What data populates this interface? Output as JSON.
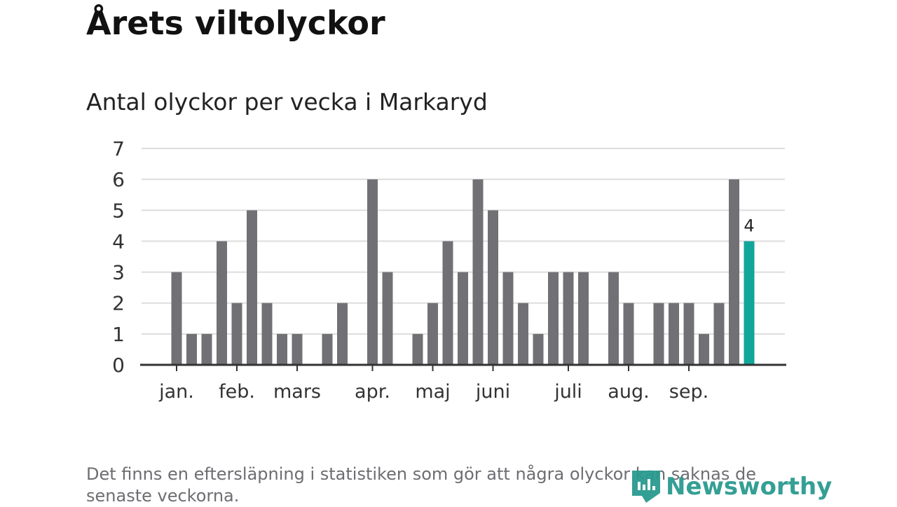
{
  "title": "Årets viltolyckor",
  "chart_data": {
    "type": "bar",
    "title": "Antal olyckor per vecka i Markaryd",
    "xlabel": "",
    "ylabel": "",
    "ylim": [
      0,
      7
    ],
    "yticks": [
      "0",
      "1",
      "2",
      "3",
      "4",
      "5",
      "6",
      "7"
    ],
    "grid": true,
    "values": [
      3,
      1,
      1,
      4,
      2,
      5,
      2,
      1,
      1,
      0,
      1,
      2,
      0,
      6,
      3,
      0,
      1,
      2,
      4,
      3,
      6,
      5,
      3,
      2,
      1,
      3,
      3,
      3,
      0,
      3,
      2,
      0,
      2,
      2,
      2,
      1,
      2,
      6,
      4
    ],
    "month_labels": [
      {
        "label": "jan.",
        "week_index": 0
      },
      {
        "label": "feb.",
        "week_index": 4
      },
      {
        "label": "mars",
        "week_index": 8
      },
      {
        "label": "apr.",
        "week_index": 13
      },
      {
        "label": "maj",
        "week_index": 17
      },
      {
        "label": "juni",
        "week_index": 21
      },
      {
        "label": "juli",
        "week_index": 26
      },
      {
        "label": "aug.",
        "week_index": 30
      },
      {
        "label": "sep.",
        "week_index": 34
      }
    ],
    "highlight_label": "4",
    "colors": {
      "bar": "#717074",
      "highlight": "#12a59a",
      "grid": "#dddddd",
      "axis": "#333333"
    }
  },
  "note": "Det finns en eftersläpning i statistiken som gör att några olyckor kan saknas de senaste veckorna.",
  "logo": "Newsworthy"
}
